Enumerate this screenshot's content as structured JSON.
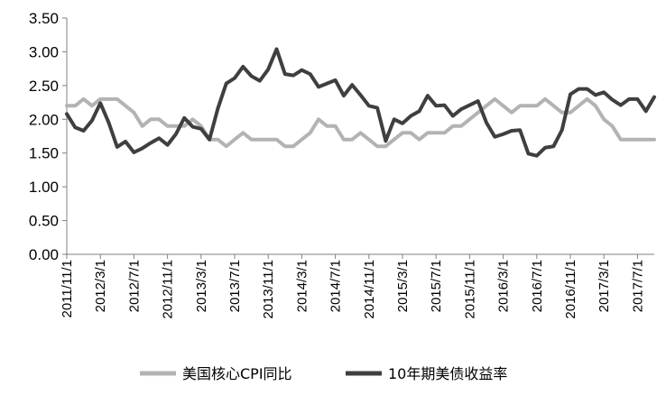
{
  "chart_data": {
    "type": "line",
    "ylim": [
      0.0,
      3.5
    ],
    "yticks": [
      "0.00",
      "0.50",
      "1.00",
      "1.50",
      "2.00",
      "2.50",
      "3.00",
      "3.50"
    ],
    "xtick_labels": [
      "2011/11/1",
      "2012/3/1",
      "2012/7/1",
      "2012/11/1",
      "2013/3/1",
      "2013/7/1",
      "2013/11/1",
      "2014/3/1",
      "2014/7/1",
      "2014/11/1",
      "2015/3/1",
      "2015/7/1",
      "2015/11/1",
      "2016/3/1",
      "2016/7/1",
      "2016/11/1",
      "2017/3/1",
      "2017/7/1"
    ],
    "x_start": "2011/11/1",
    "x_end": "2017/9/1",
    "legend_position": "bottom",
    "grid": false,
    "series": [
      {
        "name": "美国核心CPI同比",
        "color": "#b3b3b3",
        "values": [
          2.2,
          2.2,
          2.3,
          2.2,
          2.3,
          2.3,
          2.3,
          2.2,
          2.1,
          1.9,
          2.0,
          2.0,
          1.9,
          1.9,
          1.9,
          2.0,
          1.9,
          1.7,
          1.7,
          1.6,
          1.7,
          1.8,
          1.7,
          1.7,
          1.7,
          1.7,
          1.6,
          1.6,
          1.7,
          1.8,
          2.0,
          1.9,
          1.9,
          1.7,
          1.7,
          1.8,
          1.7,
          1.6,
          1.6,
          1.7,
          1.8,
          1.8,
          1.7,
          1.8,
          1.8,
          1.8,
          1.9,
          1.9,
          2.0,
          2.1,
          2.2,
          2.3,
          2.2,
          2.1,
          2.2,
          2.2,
          2.2,
          2.3,
          2.2,
          2.1,
          2.1,
          2.2,
          2.3,
          2.2,
          2.0,
          1.9,
          1.7,
          1.7,
          1.7,
          1.7,
          1.7
        ]
      },
      {
        "name": "10年期美债收益率",
        "color": "#3f3f3f",
        "values": [
          2.08,
          1.88,
          1.83,
          1.98,
          2.24,
          1.95,
          1.59,
          1.67,
          1.51,
          1.57,
          1.65,
          1.72,
          1.62,
          1.78,
          2.02,
          1.89,
          1.86,
          1.7,
          2.16,
          2.53,
          2.61,
          2.78,
          2.64,
          2.57,
          2.74,
          3.04,
          2.67,
          2.65,
          2.73,
          2.67,
          2.48,
          2.53,
          2.58,
          2.35,
          2.51,
          2.36,
          2.2,
          2.17,
          1.68,
          2.0,
          1.94,
          2.05,
          2.12,
          2.35,
          2.2,
          2.21,
          2.05,
          2.15,
          2.21,
          2.27,
          1.95,
          1.74,
          1.78,
          1.83,
          1.84,
          1.49,
          1.46,
          1.58,
          1.6,
          1.84,
          2.37,
          2.45,
          2.45,
          2.36,
          2.4,
          2.29,
          2.21,
          2.3,
          2.3,
          2.12,
          2.33
        ]
      }
    ]
  }
}
